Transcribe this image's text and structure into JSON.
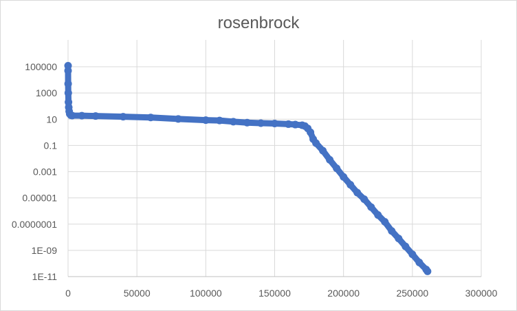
{
  "chart_data": {
    "type": "scatter",
    "title": "rosenbrock",
    "xlabel": "",
    "ylabel": "",
    "xlim": [
      0,
      300000
    ],
    "ylim": [
      1e-11,
      1000000
    ],
    "y_scale": "log",
    "grid": true,
    "legend": "none",
    "x_ticks": [
      "0",
      "50000",
      "100000",
      "150000",
      "200000",
      "250000",
      "300000"
    ],
    "y_ticks": [
      "100000",
      "1000",
      "10",
      "0.1",
      "0.001",
      "0.00001",
      "0.0000001",
      "1E-09",
      "1E-11"
    ],
    "series": [
      {
        "color": "#4472c4",
        "x": [
          0,
          0,
          50,
          150,
          300,
          500,
          800,
          1200,
          2000,
          3000,
          10000,
          20000,
          40000,
          60000,
          80000,
          100000,
          110000,
          120000,
          130000,
          140000,
          150000,
          160000,
          165000,
          170000,
          172000,
          174000,
          176000,
          178000,
          180000,
          185000,
          190000,
          195000,
          200000,
          205000,
          210000,
          215000,
          220000,
          225000,
          230000,
          235000,
          240000,
          245000,
          250000,
          255000,
          260000,
          261000
        ],
        "y": [
          120000,
          50000,
          5000,
          1000,
          200,
          80,
          40,
          25,
          20,
          19,
          18.5,
          17.5,
          15.5,
          13.5,
          10.5,
          8.5,
          8,
          6.5,
          5.5,
          5,
          4.7,
          4.2,
          3.9,
          3.5,
          3,
          2,
          1,
          0.3,
          0.15,
          0.04,
          0.008,
          0.0018,
          0.0004,
          0.0001,
          2.5e-05,
          8e-06,
          2e-06,
          5e-07,
          1.5e-07,
          3e-08,
          8e-09,
          2e-09,
          5e-10,
          1.2e-10,
          3.5e-11,
          2.5e-11
        ]
      }
    ]
  }
}
